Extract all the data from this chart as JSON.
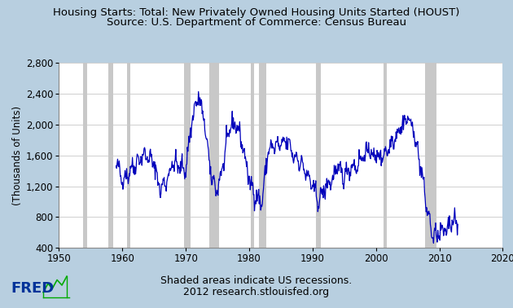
{
  "title_line1": "Housing Starts: Total: New Privately Owned Housing Units Started (HOUST)",
  "title_line2": "Source: U.S. Department of Commerce: Census Bureau",
  "ylabel": "(Thousands of Units)",
  "footer_line1": "Shaded areas indicate US recessions.",
  "footer_line2": "2012 research.stlouisfed.org",
  "xlim": [
    1950,
    2020
  ],
  "ylim": [
    400,
    2800
  ],
  "yticks": [
    400,
    800,
    1200,
    1600,
    2000,
    2400,
    2800
  ],
  "xticks": [
    1950,
    1960,
    1970,
    1980,
    1990,
    2000,
    2010,
    2020
  ],
  "recession_bands": [
    [
      1953.75,
      1954.5
    ],
    [
      1957.75,
      1958.5
    ],
    [
      1960.75,
      1961.25
    ],
    [
      1969.75,
      1970.75
    ],
    [
      1973.75,
      1975.25
    ],
    [
      1980.25,
      1980.75
    ],
    [
      1981.5,
      1982.75
    ],
    [
      1990.5,
      1991.25
    ],
    [
      2001.25,
      2001.75
    ],
    [
      2007.75,
      2009.5
    ]
  ],
  "background_color": "#b8cfe0",
  "plot_bg_color": "#ffffff",
  "line_color": "#0000bb",
  "recession_color": "#c8c8c8",
  "title_fontsize": 9.5,
  "ylabel_fontsize": 8.5,
  "tick_fontsize": 8.5,
  "footer_fontsize": 9,
  "yearly_approx": {
    "1959": 1490,
    "1960": 1290,
    "1961": 1380,
    "1962": 1490,
    "1963": 1600,
    "1964": 1590,
    "1965": 1490,
    "1966": 1150,
    "1967": 1290,
    "1968": 1510,
    "1969": 1450,
    "1970": 1430,
    "1971": 2080,
    "1972": 2380,
    "1973": 2000,
    "1974": 1310,
    "1975": 1150,
    "1976": 1530,
    "1977": 1990,
    "1978": 2010,
    "1979": 1730,
    "1980": 1270,
    "1981": 1080,
    "1982": 980,
    "1983": 1680,
    "1984": 1720,
    "1985": 1730,
    "1986": 1790,
    "1987": 1600,
    "1988": 1530,
    "1989": 1370,
    "1990": 1190,
    "1991": 1010,
    "1992": 1180,
    "1993": 1280,
    "1994": 1430,
    "1995": 1330,
    "1996": 1460,
    "1997": 1470,
    "1998": 1610,
    "1999": 1660,
    "2000": 1580,
    "2001": 1600,
    "2002": 1700,
    "2003": 1850,
    "2004": 1980,
    "2005": 2100,
    "2006": 1900,
    "2007": 1490,
    "2008": 930,
    "2009": 540,
    "2010": 590,
    "2011": 610,
    "2012": 770
  }
}
